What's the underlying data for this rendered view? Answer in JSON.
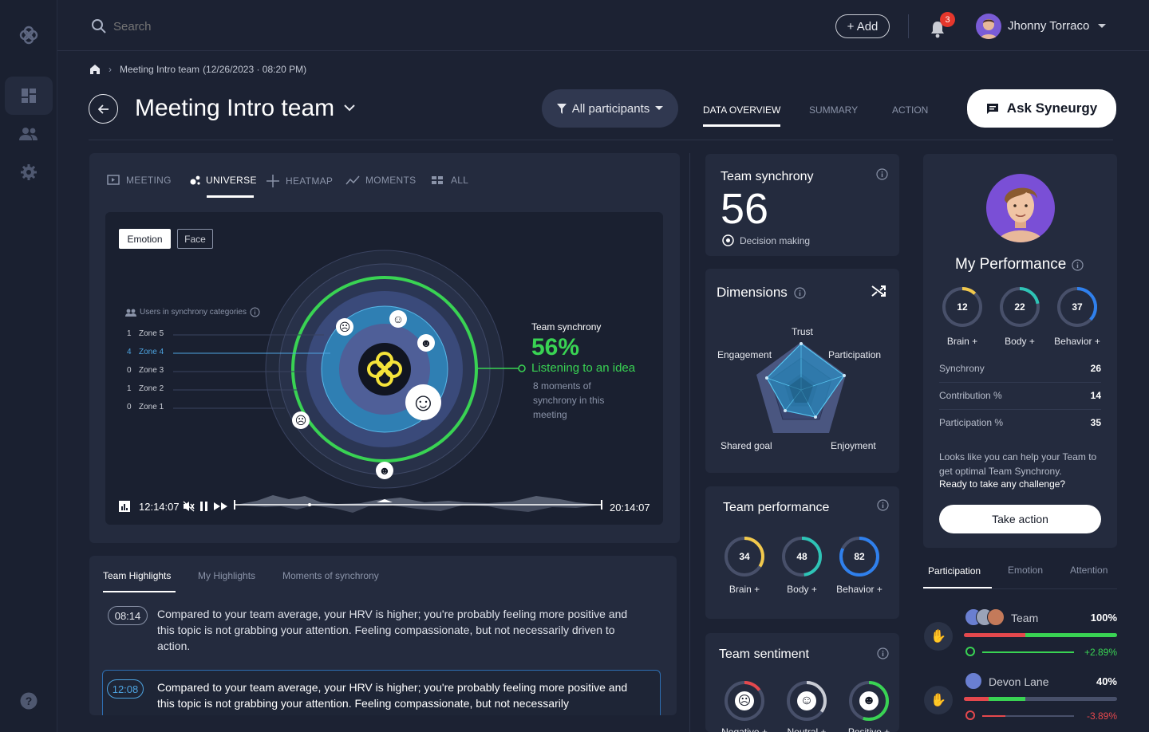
{
  "topbar": {
    "search_placeholder": "Search",
    "add_label": "+ Add",
    "notification_count": "3",
    "user_name": "Jhonny Torraco"
  },
  "breadcrumb": {
    "text": "Meeting Intro team",
    "meta": "(12/26/2023 · 08:20 PM)"
  },
  "header": {
    "title": "Meeting Intro team",
    "filter_label": "All participants",
    "tabs": [
      "DATA OVERVIEW",
      "SUMMARY",
      "ACTION"
    ],
    "ask_label": "Ask Syneurgy"
  },
  "view_tabs": [
    "MEETING",
    "UNIVERSE",
    "HEATMAP",
    "MOMENTS",
    "ALL"
  ],
  "universe": {
    "toggle": [
      "Emotion",
      "Face"
    ],
    "legend_title": "Users in synchrony categories",
    "zones": [
      {
        "count": "1",
        "name": "Zone 5"
      },
      {
        "count": "4",
        "name": "Zone 4"
      },
      {
        "count": "0",
        "name": "Zone 3"
      },
      {
        "count": "1",
        "name": "Zone 2"
      },
      {
        "count": "0",
        "name": "Zone 1"
      }
    ],
    "sync_title": "Team synchrony",
    "sync_pct": "56%",
    "sync_status": "Listening to an idea",
    "sync_desc": "8 moments of synchrony in this meeting",
    "time_start": "12:14:07",
    "time_end": "20:14:07"
  },
  "highlights": {
    "tabs": [
      "Team Highlights",
      "My Highlights",
      "Moments of synchrony"
    ],
    "items": [
      {
        "time": "08:14",
        "text": "Compared to your team average, your HRV is higher; you're probably feeling more positive and this topic is not grabbing your attention. Feeling compassionate, but not necessarily driven to action."
      },
      {
        "time": "12:08",
        "text": "Compared to your team average, your HRV is higher; you're probably feeling more positive and this topic is not grabbing your attention. Feeling compassionate, but not necessarily"
      }
    ]
  },
  "team_synchrony": {
    "title": "Team synchrony",
    "value": "56",
    "subtitle": "Decision making"
  },
  "dimensions": {
    "title": "Dimensions",
    "labels": [
      "Trust",
      "Participation",
      "Enjoyment",
      "Shared goal",
      "Engagement"
    ]
  },
  "team_performance": {
    "title": "Team performance",
    "gauges": [
      {
        "value": "34",
        "label": "Brain +",
        "color": "#f2c94c",
        "fraction": 0.34
      },
      {
        "value": "48",
        "label": "Body +",
        "color": "#2ec4b6",
        "fraction": 0.48
      },
      {
        "value": "82",
        "label": "Behavior +",
        "color": "#2f80ed",
        "fraction": 0.82
      }
    ]
  },
  "team_sentiment": {
    "title": "Team sentiment",
    "gauges": [
      {
        "label": "Negative +",
        "color": "#e5484d",
        "fraction": 0.15
      },
      {
        "label": "Neutral +",
        "color": "#c9ccd4",
        "fraction": 0.35
      },
      {
        "label": "Positive +",
        "color": "#39d353",
        "fraction": 0.55
      }
    ]
  },
  "my_performance": {
    "title": "My Performance",
    "gauges": [
      {
        "value": "12",
        "label": "Brain +",
        "color": "#f2c94c",
        "fraction": 0.12
      },
      {
        "value": "22",
        "label": "Body +",
        "color": "#2ec4b6",
        "fraction": 0.22
      },
      {
        "value": "37",
        "label": "Behavior +",
        "color": "#2f80ed",
        "fraction": 0.37
      }
    ],
    "stats": [
      {
        "label": "Synchrony",
        "value": "26"
      },
      {
        "label": "Contribution %",
        "value": "14"
      },
      {
        "label": "Participation %",
        "value": "35"
      }
    ],
    "note": "Looks like you can help your Team to get optimal Team Synchrony.",
    "note_bold": "Ready to take any challenge?",
    "action_label": "Take action"
  },
  "participation": {
    "tabs": [
      "Participation",
      "Emotion",
      "Attention"
    ],
    "rows": [
      {
        "name": "Team",
        "pct": "100%",
        "delta": "+2.89%",
        "fill": 1.0,
        "delta_color": "#39d353"
      },
      {
        "name": "Devon Lane",
        "pct": "40%",
        "delta": "-3.89%",
        "fill": 0.4,
        "delta_color": "#e5484d"
      }
    ]
  }
}
